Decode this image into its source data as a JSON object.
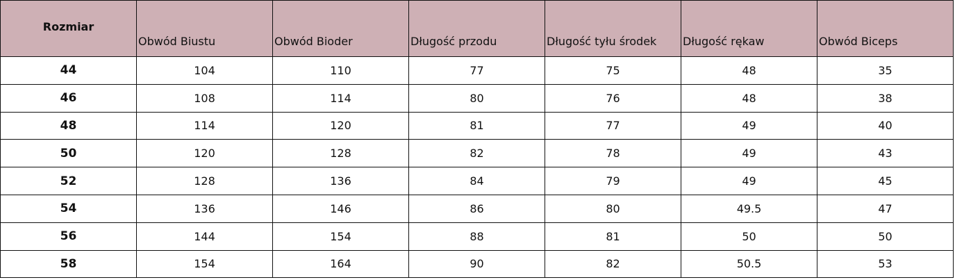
{
  "colors": {
    "header_bg": "#ceb0b5",
    "border": "#111111"
  },
  "table": {
    "headers": [
      "Rozmiar",
      "Obwód Biustu",
      "Obwód Bioder",
      "Długość przodu",
      "Długość tyłu środek",
      "Długość rękaw",
      "Obwód Biceps"
    ],
    "rows": [
      [
        "44",
        "104",
        "110",
        "77",
        "75",
        "48",
        "35"
      ],
      [
        "46",
        "108",
        "114",
        "80",
        "76",
        "48",
        "38"
      ],
      [
        "48",
        "114",
        "120",
        "81",
        "77",
        "49",
        "40"
      ],
      [
        "50",
        "120",
        "128",
        "82",
        "78",
        "49",
        "43"
      ],
      [
        "52",
        "128",
        "136",
        "84",
        "79",
        "49",
        "45"
      ],
      [
        "54",
        "136",
        "146",
        "86",
        "80",
        "49.5",
        "47"
      ],
      [
        "56",
        "144",
        "154",
        "88",
        "81",
        "50",
        "50"
      ],
      [
        "58",
        "154",
        "164",
        "90",
        "82",
        "50.5",
        "53"
      ]
    ]
  }
}
